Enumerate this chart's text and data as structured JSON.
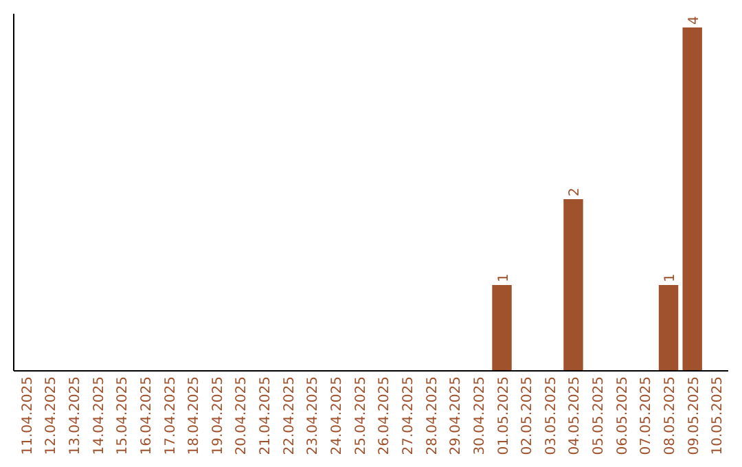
{
  "chart_data": {
    "type": "bar",
    "categories": [
      "11.04.2025",
      "12.04.2025",
      "13.04.2025",
      "14.04.2025",
      "15.04.2025",
      "16.04.2025",
      "17.04.2025",
      "18.04.2025",
      "19.04.2025",
      "20.04.2025",
      "21.04.2025",
      "22.04.2025",
      "23.04.2025",
      "24.04.2025",
      "25.04.2025",
      "26.04.2025",
      "27.04.2025",
      "28.04.2025",
      "29.04.2025",
      "30.04.2025",
      "01.05.2025",
      "02.05.2025",
      "03.05.2025",
      "04.05.2025",
      "05.05.2025",
      "06.05.2025",
      "07.05.2025",
      "08.05.2025",
      "09.05.2025",
      "10.05.2025"
    ],
    "values": [
      null,
      null,
      null,
      null,
      null,
      null,
      null,
      null,
      null,
      null,
      null,
      null,
      null,
      null,
      null,
      null,
      null,
      null,
      null,
      null,
      1,
      null,
      null,
      2,
      null,
      null,
      null,
      1,
      4,
      null
    ],
    "value_labels": [
      null,
      null,
      null,
      null,
      null,
      null,
      null,
      null,
      null,
      null,
      null,
      null,
      null,
      null,
      null,
      null,
      null,
      null,
      null,
      null,
      "1",
      null,
      null,
      "2",
      null,
      null,
      null,
      "1",
      "4",
      null
    ],
    "color": "#a0522d",
    "tick_labels": "x"
  }
}
